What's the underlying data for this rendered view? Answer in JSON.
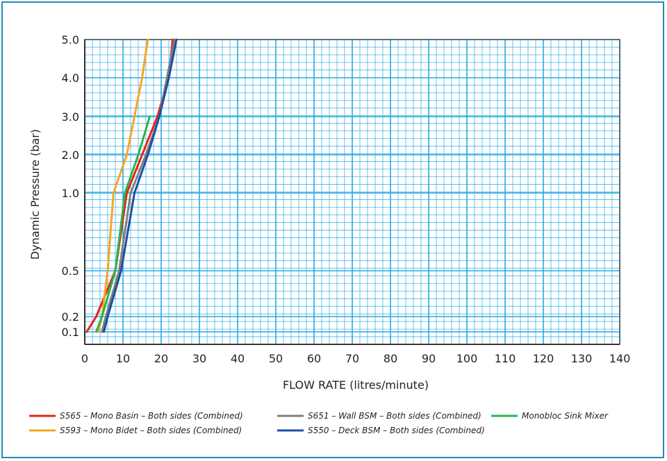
{
  "chart_data": {
    "type": "line",
    "title": "",
    "xlabel": "FLOW RATE (litres/minute)",
    "ylabel": "Dynamic Pressure (bar)",
    "xlim": [
      0,
      140
    ],
    "x_ticks": [
      "0",
      "10",
      "20",
      "30",
      "40",
      "50",
      "60",
      "70",
      "80",
      "90",
      "100",
      "110",
      "120",
      "130",
      "140"
    ],
    "y_ticks": [
      "5.0",
      "4.0",
      "3.0",
      "2.0",
      "1.0",
      "0.5",
      "0.2",
      "0.1"
    ],
    "y_tick_values": [
      5.0,
      4.0,
      3.0,
      2.0,
      1.0,
      0.5,
      0.2,
      0.1
    ],
    "grid": true,
    "grid_color": "#29a9e0",
    "legend_position": "bottom",
    "series": [
      {
        "name": "S565 – Mono Basin – Both sides (Combined)",
        "color": "#e3231b",
        "points": [
          [
            0.5,
            0.1
          ],
          [
            3,
            0.2
          ],
          [
            8,
            0.5
          ],
          [
            11,
            1.0
          ],
          [
            15,
            2.0
          ],
          [
            19,
            3.0
          ],
          [
            22,
            4.0
          ],
          [
            23,
            5.0
          ]
        ]
      },
      {
        "name": "S593 – Mono Bidet – Both sides (Combined)",
        "color": "#f5a623",
        "points": [
          [
            3.5,
            0.1
          ],
          [
            4.5,
            0.2
          ],
          [
            6,
            0.5
          ],
          [
            7.5,
            1.0
          ],
          [
            11,
            2.0
          ],
          [
            13,
            3.0
          ],
          [
            15,
            4.0
          ],
          [
            16.5,
            5.0
          ]
        ]
      },
      {
        "name": "S651 – Wall BSM – Both sides (Combined)",
        "color": "#7f7f7f",
        "points": [
          [
            4.5,
            0.1
          ],
          [
            5.5,
            0.2
          ],
          [
            9,
            0.5
          ],
          [
            12,
            1.0
          ],
          [
            16,
            2.0
          ],
          [
            19.5,
            3.0
          ],
          [
            21.5,
            4.0
          ],
          [
            23.5,
            5.0
          ]
        ]
      },
      {
        "name": "S550 – Deck BSM – Both sides (Combined)",
        "color": "#1d4ea3",
        "points": [
          [
            5,
            0.1
          ],
          [
            6,
            0.2
          ],
          [
            9.5,
            0.5
          ],
          [
            13,
            1.0
          ],
          [
            16.5,
            2.0
          ],
          [
            19.5,
            3.0
          ],
          [
            22,
            4.0
          ],
          [
            24,
            5.0
          ]
        ]
      },
      {
        "name": "Monobloc Sink Mixer",
        "color": "#2db34a",
        "points": [
          [
            3,
            0.1
          ],
          [
            4.5,
            0.2
          ],
          [
            8,
            0.5
          ],
          [
            10.5,
            1.0
          ],
          [
            14,
            2.0
          ],
          [
            17,
            3.0
          ]
        ]
      }
    ]
  }
}
